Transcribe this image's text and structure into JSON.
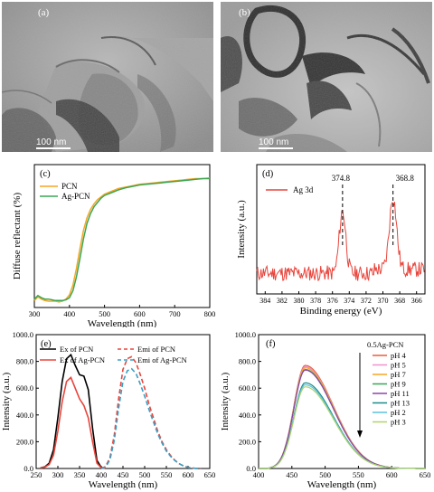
{
  "panels": {
    "a": {
      "tag": "(a)",
      "scalebar": "100 nm"
    },
    "b": {
      "tag": "(b)",
      "scalebar": "100 nm"
    }
  },
  "chart_data": [
    {
      "id": "c",
      "type": "line",
      "panel_label": "(c)",
      "xlabel": "Wavelength (nm)",
      "ylabel": "Diffuse reflectant (%)",
      "xlim": [
        300,
        800
      ],
      "xticks": [
        300,
        400,
        500,
        600,
        700,
        800
      ],
      "y_ticks_shown": false,
      "legend_position": "top-left",
      "series": [
        {
          "name": "PCN",
          "color": "#f5a623",
          "x": [
            300,
            310,
            320,
            330,
            340,
            350,
            360,
            370,
            380,
            390,
            400,
            410,
            420,
            430,
            440,
            450,
            460,
            470,
            480,
            490,
            500,
            520,
            540,
            560,
            580,
            600,
            620,
            640,
            660,
            680,
            700,
            720,
            740,
            760,
            780,
            800
          ],
          "y": [
            0.05,
            0.075,
            0.06,
            0.05,
            0.045,
            0.045,
            0.045,
            0.04,
            0.045,
            0.06,
            0.09,
            0.16,
            0.28,
            0.42,
            0.55,
            0.64,
            0.7,
            0.74,
            0.77,
            0.79,
            0.81,
            0.83,
            0.85,
            0.86,
            0.87,
            0.88,
            0.885,
            0.89,
            0.895,
            0.9,
            0.905,
            0.91,
            0.915,
            0.92,
            0.92,
            0.925
          ]
        },
        {
          "name": "Ag-PCN",
          "color": "#3aa655",
          "x": [
            300,
            310,
            320,
            330,
            340,
            350,
            360,
            370,
            380,
            390,
            400,
            410,
            420,
            430,
            440,
            450,
            460,
            470,
            480,
            490,
            500,
            520,
            540,
            560,
            580,
            600,
            620,
            640,
            660,
            680,
            700,
            720,
            740,
            760,
            780,
            800
          ],
          "y": [
            0.06,
            0.085,
            0.07,
            0.06,
            0.06,
            0.055,
            0.05,
            0.05,
            0.05,
            0.055,
            0.07,
            0.12,
            0.22,
            0.35,
            0.49,
            0.6,
            0.67,
            0.72,
            0.75,
            0.78,
            0.8,
            0.82,
            0.84,
            0.855,
            0.865,
            0.875,
            0.88,
            0.885,
            0.89,
            0.895,
            0.9,
            0.905,
            0.91,
            0.915,
            0.92,
            0.92
          ]
        }
      ]
    },
    {
      "id": "d",
      "type": "line",
      "panel_label": "(d)",
      "xlabel": "Binding energy (eV)",
      "ylabel": "Intensity (a.u.)",
      "xlim": [
        385,
        365
      ],
      "xticks": [
        384,
        382,
        380,
        378,
        376,
        374,
        372,
        370,
        368,
        366
      ],
      "y_ticks_shown": false,
      "legend_position": "top-left",
      "peaks": [
        {
          "x": 374.8,
          "label": "374.8"
        },
        {
          "x": 368.8,
          "label": "368.8"
        }
      ],
      "series": [
        {
          "name": "Ag 3d",
          "color": "#e8453c",
          "peak_positions": [
            374.8,
            368.8
          ]
        }
      ]
    },
    {
      "id": "e",
      "type": "line",
      "panel_label": "(e)",
      "xlabel": "Wavelength (nm)",
      "ylabel": "Intensity (a.u.)",
      "xlim": [
        250,
        650
      ],
      "ylim": [
        0,
        1000
      ],
      "xticks": [
        250,
        300,
        350,
        400,
        450,
        500,
        550,
        600,
        650
      ],
      "yticks": [
        0,
        200,
        400,
        600,
        800,
        1000
      ],
      "ytick_labels": [
        "0.0",
        "200.0",
        "400.0",
        "600.0",
        "800.0",
        "1000.0"
      ],
      "legend_position": "top",
      "series": [
        {
          "name": "Ex of  PCN",
          "color": "#000000",
          "dash": false,
          "x": [
            260,
            270,
            280,
            290,
            300,
            310,
            320,
            330,
            340,
            350,
            360,
            370,
            380,
            390,
            400,
            410
          ],
          "y": [
            5,
            12,
            40,
            140,
            380,
            650,
            820,
            850,
            770,
            700,
            690,
            590,
            300,
            60,
            8,
            0
          ]
        },
        {
          "name": "Ex of  Ag-PCN",
          "color": "#e8453c",
          "dash": false,
          "x": [
            260,
            270,
            280,
            290,
            300,
            310,
            320,
            330,
            340,
            350,
            360,
            370,
            380,
            390,
            400,
            410
          ],
          "y": [
            5,
            10,
            30,
            100,
            280,
            500,
            650,
            680,
            600,
            520,
            470,
            380,
            200,
            40,
            5,
            0
          ]
        },
        {
          "name": "Emi of  PCN",
          "color": "#e8453c",
          "dash": true,
          "x": [
            400,
            410,
            420,
            430,
            440,
            450,
            460,
            470,
            480,
            490,
            500,
            510,
            520,
            530,
            540,
            550,
            560,
            570,
            580,
            590,
            600,
            610,
            620,
            630
          ],
          "y": [
            0,
            15,
            80,
            250,
            520,
            740,
            820,
            835,
            790,
            700,
            600,
            480,
            380,
            280,
            200,
            140,
            95,
            60,
            35,
            18,
            8,
            3,
            1,
            0
          ]
        },
        {
          "name": "Emi of  Ag-PCN",
          "color": "#3b9fc4",
          "dash": true,
          "x": [
            400,
            410,
            420,
            430,
            440,
            450,
            460,
            470,
            480,
            490,
            500,
            510,
            520,
            530,
            540,
            550,
            560,
            570,
            580,
            590,
            600,
            610,
            620,
            630
          ],
          "y": [
            0,
            10,
            65,
            210,
            450,
            650,
            730,
            745,
            710,
            630,
            540,
            440,
            350,
            260,
            190,
            130,
            90,
            58,
            35,
            18,
            8,
            3,
            1,
            0
          ]
        }
      ]
    },
    {
      "id": "f",
      "type": "line",
      "panel_label": "(f)",
      "xlabel": "Wavelength (nm)",
      "ylabel": "Intensity (a.u.)",
      "xlim": [
        400,
        650
      ],
      "ylim": [
        0,
        1000
      ],
      "xticks": [
        400,
        450,
        500,
        550,
        600,
        650
      ],
      "yticks": [
        0,
        200,
        400,
        600,
        800,
        1000
      ],
      "ytick_labels": [
        "0.0",
        "200.0",
        "400.0",
        "600.0",
        "800.0",
        "1000.0"
      ],
      "legend_title": "0.5Ag-PCN",
      "legend_position": "top-right",
      "arrow_direction": "down",
      "series": [
        {
          "name": "pH 4",
          "color": "#e85c3c",
          "peak": 770
        },
        {
          "name": "pH 5",
          "color": "#f08fd0",
          "peak": 760
        },
        {
          "name": "pH 7",
          "color": "#f5a623",
          "peak": 752
        },
        {
          "name": "pH 9",
          "color": "#3aa655",
          "peak": 740
        },
        {
          "name": "pH 11",
          "color": "#8e44ad",
          "peak": 735
        },
        {
          "name": "pH 13",
          "color": "#1d8a8a",
          "peak": 640
        },
        {
          "name": "pH 2",
          "color": "#5bc0de",
          "peak": 625
        },
        {
          "name": "pH 3",
          "color": "#b0d46a",
          "peak": 610
        }
      ]
    }
  ]
}
